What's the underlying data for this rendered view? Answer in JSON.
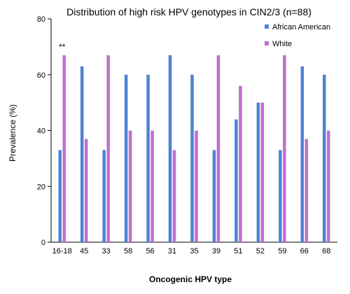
{
  "chart_data": {
    "type": "bar",
    "title": "Distribution of high risk HPV genotypes in CIN2/3  (n=88)",
    "xlabel": "Oncogenic HPV type",
    "ylabel": "Prevalence (%)",
    "ylim": [
      0,
      80
    ],
    "yticks": [
      0,
      20,
      40,
      60,
      80
    ],
    "grid": false,
    "legend_position": "top-right",
    "categories": [
      "16-18",
      "45",
      "33",
      "58",
      "56",
      "31",
      "35",
      "39",
      "51",
      "52",
      "59",
      "66",
      "68"
    ],
    "series": [
      {
        "name": "African American",
        "color": "#4f81d3",
        "values": [
          33,
          63,
          33,
          60,
          60,
          67,
          60,
          33,
          44,
          50,
          33,
          63,
          60
        ]
      },
      {
        "name": "White",
        "color": "#c06fce",
        "values": [
          67,
          37,
          67,
          40,
          40,
          33,
          40,
          67,
          56,
          50,
          67,
          37,
          40
        ]
      }
    ],
    "annotations": [
      {
        "text": "**",
        "category": "16-18",
        "y": 70
      }
    ]
  }
}
